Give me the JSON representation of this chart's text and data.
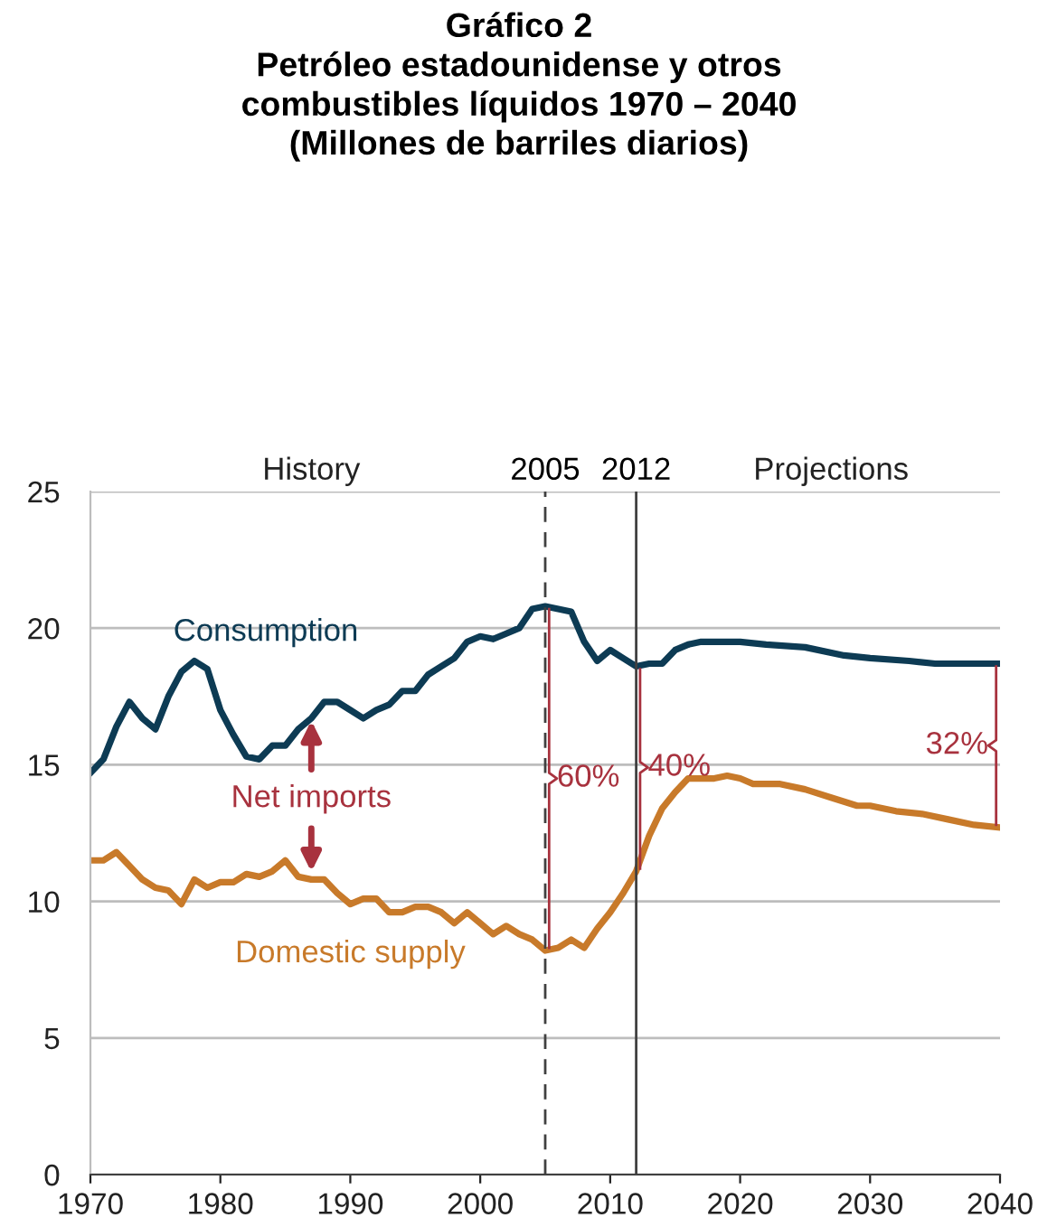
{
  "chart_data": {
    "type": "line",
    "title": "Gráfico 2\nPetróleo estadounidense y otros\ncombustibles líquidos 1970 – 2040\n(Millones de barriles diarios)",
    "series": [
      {
        "name": "Consumption",
        "color": "#0d3b54",
        "x": [
          1970,
          1971,
          1972,
          1973,
          1974,
          1975,
          1976,
          1977,
          1978,
          1979,
          1980,
          1981,
          1982,
          1983,
          1984,
          1985,
          1986,
          1987,
          1988,
          1989,
          1990,
          1991,
          1992,
          1993,
          1994,
          1995,
          1996,
          1997,
          1998,
          1999,
          2000,
          2001,
          2002,
          2003,
          2004,
          2005,
          2006,
          2007,
          2008,
          2009,
          2010,
          2011,
          2012,
          2013,
          2014,
          2015,
          2016,
          2017,
          2018,
          2019,
          2020,
          2022,
          2025,
          2028,
          2030,
          2033,
          2035,
          2040
        ],
        "values": [
          14.7,
          15.2,
          16.4,
          17.3,
          16.7,
          16.3,
          17.5,
          18.4,
          18.8,
          18.5,
          17.0,
          16.1,
          15.3,
          15.2,
          15.7,
          15.7,
          16.3,
          16.7,
          17.3,
          17.3,
          17.0,
          16.7,
          17.0,
          17.2,
          17.7,
          17.7,
          18.3,
          18.6,
          18.9,
          19.5,
          19.7,
          19.6,
          19.8,
          20.0,
          20.7,
          20.8,
          20.7,
          20.6,
          19.5,
          18.8,
          19.2,
          18.9,
          18.6,
          18.7,
          18.7,
          19.2,
          19.4,
          19.5,
          19.5,
          19.5,
          19.5,
          19.4,
          19.3,
          19.0,
          18.9,
          18.8,
          18.7,
          18.7
        ]
      },
      {
        "name": "Domestic supply",
        "color": "#c87a2a",
        "x": [
          1970,
          1971,
          1972,
          1973,
          1974,
          1975,
          1976,
          1977,
          1978,
          1979,
          1980,
          1981,
          1982,
          1983,
          1984,
          1985,
          1986,
          1987,
          1988,
          1989,
          1990,
          1991,
          1992,
          1993,
          1994,
          1995,
          1996,
          1997,
          1998,
          1999,
          2000,
          2001,
          2002,
          2003,
          2004,
          2005,
          2006,
          2007,
          2008,
          2009,
          2010,
          2011,
          2012,
          2013,
          2014,
          2015,
          2016,
          2017,
          2018,
          2019,
          2020,
          2021,
          2023,
          2025,
          2027,
          2029,
          2030,
          2032,
          2034,
          2036,
          2038,
          2040
        ],
        "values": [
          11.5,
          11.5,
          11.8,
          11.3,
          10.8,
          10.5,
          10.4,
          9.9,
          10.8,
          10.5,
          10.7,
          10.7,
          11.0,
          10.9,
          11.1,
          11.5,
          10.9,
          10.8,
          10.8,
          10.3,
          9.9,
          10.1,
          10.1,
          9.6,
          9.6,
          9.8,
          9.8,
          9.6,
          9.2,
          9.6,
          9.2,
          8.8,
          9.1,
          8.8,
          8.6,
          8.2,
          8.3,
          8.6,
          8.3,
          9.0,
          9.6,
          10.3,
          11.1,
          12.4,
          13.4,
          14.0,
          14.5,
          14.5,
          14.5,
          14.6,
          14.5,
          14.3,
          14.3,
          14.1,
          13.8,
          13.5,
          13.5,
          13.3,
          13.2,
          13.0,
          12.8,
          12.7
        ]
      }
    ],
    "xlim": [
      1970,
      2040
    ],
    "xticks": [
      1970,
      1980,
      1990,
      2000,
      2010,
      2020,
      2030,
      2040
    ],
    "ylim": [
      0,
      25
    ],
    "yticks": [
      0,
      5,
      10,
      15,
      20,
      25
    ],
    "grid": "y",
    "legend": false,
    "ref_lines": [
      {
        "axis": "x",
        "value": 2005,
        "label": "2005",
        "color": "#404040",
        "line_style": "dashed"
      },
      {
        "axis": "x",
        "value": 2012,
        "label": "2012",
        "color": "#404040",
        "line_style": "solid"
      }
    ],
    "annotations": [
      "History",
      "Projections",
      {
        "text": "Net imports",
        "x": 1987,
        "y": 16.7
      },
      "60%",
      "40%",
      "32%"
    ]
  }
}
